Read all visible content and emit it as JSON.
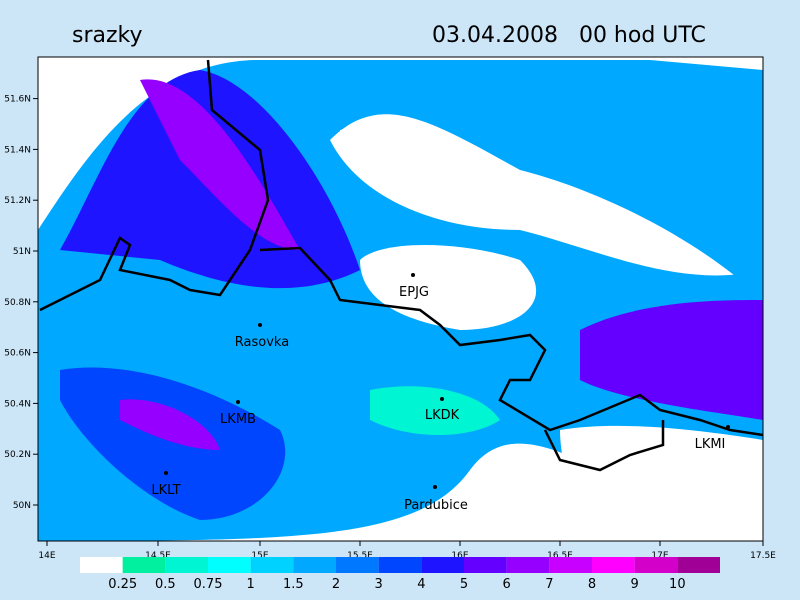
{
  "header": {
    "title": "srazky",
    "date": "03.04.2008   00 hod UTC"
  },
  "axes": {
    "lon": [
      "14E",
      "14.5E",
      "15E",
      "15.5E",
      "16E",
      "16.5E",
      "17E",
      "17.5E"
    ],
    "lat": [
      "50N",
      "50.2N",
      "50.4N",
      "50.6N",
      "50.8N",
      "51N",
      "51.2N",
      "51.4N",
      "51.6N"
    ]
  },
  "stations": [
    {
      "label": "EPJG"
    },
    {
      "label": "Rasovka"
    },
    {
      "label": "LKMB"
    },
    {
      "label": "LKDK"
    },
    {
      "label": "LKLT"
    },
    {
      "label": "Pardubice"
    },
    {
      "label": "LKMI"
    }
  ],
  "colorbar": {
    "labels": [
      "0.25",
      "0.5",
      "0.75",
      "1",
      "1.5",
      "2",
      "3",
      "4",
      "5",
      "6",
      "7",
      "8",
      "9",
      "10"
    ],
    "colors": [
      "#ffffff",
      "#00f0a0",
      "#00f5d2",
      "#00ffff",
      "#00d2ff",
      "#00a8ff",
      "#0078ff",
      "#0046ff",
      "#1e14ff",
      "#6400ff",
      "#9600ff",
      "#c800ff",
      "#ff00ff",
      "#d200c8",
      "#a00096"
    ]
  }
}
